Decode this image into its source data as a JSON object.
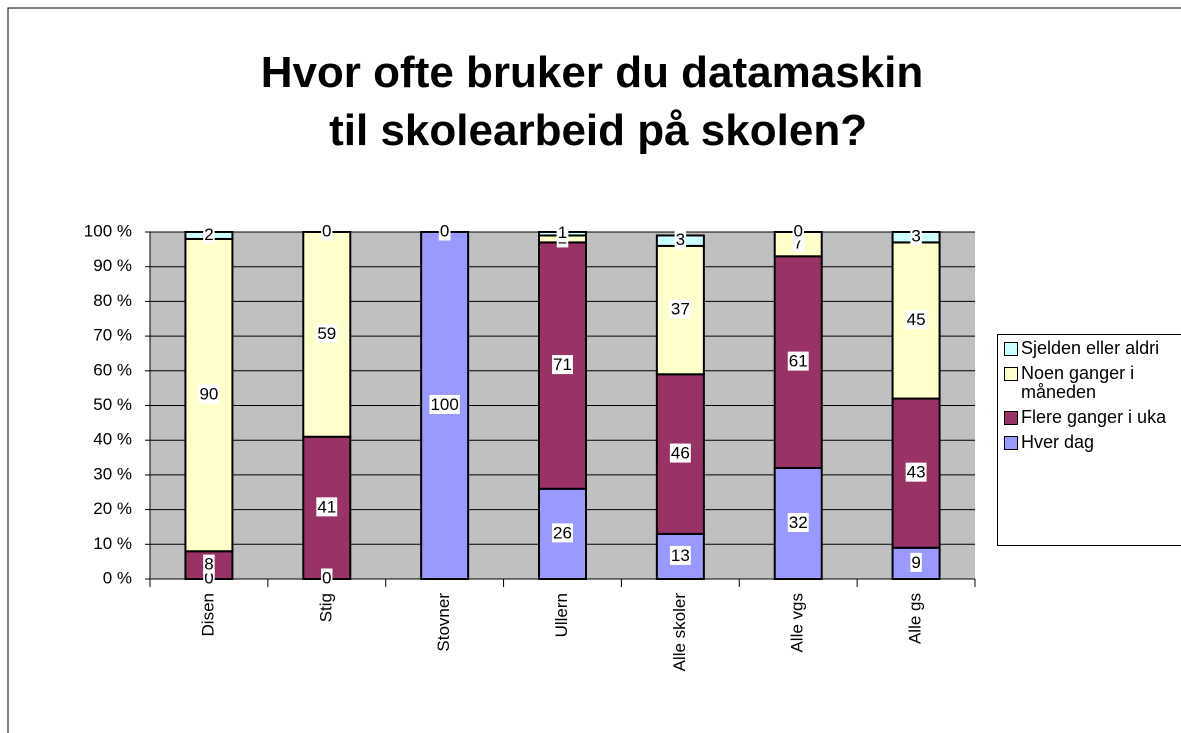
{
  "chart_data": {
    "type": "stacked_bar_percent",
    "title": "Hvor ofte bruker du datamaskin til skolearbeid på skolen?",
    "categories": [
      "Disen",
      "Stig",
      "Stovner",
      "Ullern",
      "Alle skoler",
      "Alle vgs",
      "Alle gs"
    ],
    "series": [
      {
        "name": "Hver dag",
        "color": "#9999ff",
        "values": [
          0,
          0,
          100,
          26,
          13,
          32,
          9
        ]
      },
      {
        "name": "Flere ganger i uka",
        "color": "#993366",
        "values": [
          8,
          41,
          0,
          71,
          46,
          61,
          43
        ]
      },
      {
        "name": "Noen ganger i måneden",
        "color": "#ffffcc",
        "values": [
          90,
          59,
          0,
          2,
          37,
          7,
          45
        ]
      },
      {
        "name": "Sjelden eller aldri",
        "color": "#ccffff",
        "values": [
          2,
          0,
          0,
          1,
          3,
          0,
          3
        ]
      }
    ],
    "ylim": [
      0,
      100
    ],
    "yticks": [
      {
        "value": 0,
        "label": "0 %"
      },
      {
        "value": 10,
        "label": "10 %"
      },
      {
        "value": 20,
        "label": "20 %"
      },
      {
        "value": 30,
        "label": "30 %"
      },
      {
        "value": 40,
        "label": "40 %"
      },
      {
        "value": 50,
        "label": "50 %"
      },
      {
        "value": 60,
        "label": "60 %"
      },
      {
        "value": 70,
        "label": "70 %"
      },
      {
        "value": 80,
        "label": "80 %"
      },
      {
        "value": 90,
        "label": "90 %"
      },
      {
        "value": 100,
        "label": "100 %"
      }
    ],
    "grid": true,
    "legend": "right"
  }
}
